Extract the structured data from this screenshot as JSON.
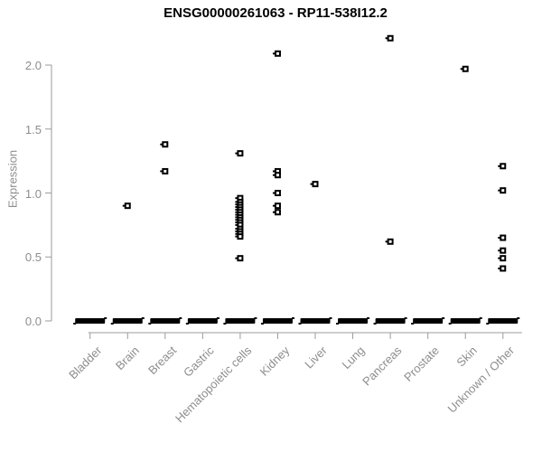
{
  "chart_data": {
    "type": "scatter",
    "subtype": "strip-plot",
    "title": "ENSG00000261063 - RP11-538I12.2",
    "xlabel": "",
    "ylabel": "Expression",
    "ylim": [
      0,
      2.3
    ],
    "yticks": [
      0,
      0.5,
      1,
      1.5,
      2
    ],
    "grid": false,
    "legend": false,
    "marker": "open-square",
    "zero_cluster_note": "every category shows a thick black horizontal bar at y=0 formed by many overlapping zero-expression points",
    "series": [
      {
        "category": "Bladder",
        "zero_stack": true,
        "values": []
      },
      {
        "category": "Brain",
        "zero_stack": true,
        "values": [
          0.9
        ]
      },
      {
        "category": "Breast",
        "zero_stack": true,
        "values": [
          1.38,
          1.17
        ]
      },
      {
        "category": "Gastric",
        "zero_stack": true,
        "values": []
      },
      {
        "category": "Hematopoietic cells",
        "zero_stack": true,
        "values": [
          1.31,
          0.96,
          0.93,
          0.91,
          0.89,
          0.87,
          0.85,
          0.83,
          0.81,
          0.79,
          0.77,
          0.75,
          0.72,
          0.7,
          0.68,
          0.66,
          0.49
        ]
      },
      {
        "category": "Kidney",
        "zero_stack": true,
        "values": [
          2.09,
          1.17,
          1.14,
          1.0,
          0.9,
          0.85
        ]
      },
      {
        "category": "Liver",
        "zero_stack": true,
        "values": [
          1.07
        ]
      },
      {
        "category": "Lung",
        "zero_stack": true,
        "values": []
      },
      {
        "category": "Pancreas",
        "zero_stack": true,
        "values": [
          2.21,
          0.62
        ]
      },
      {
        "category": "Prostate",
        "zero_stack": true,
        "values": []
      },
      {
        "category": "Skin",
        "zero_stack": true,
        "values": [
          1.97
        ]
      },
      {
        "category": "Unknown / Other",
        "zero_stack": true,
        "values": [
          1.21,
          1.02,
          0.65,
          0.55,
          0.49,
          0.41
        ]
      }
    ]
  },
  "colors": {
    "marker": "#000000",
    "title_text": "#000000",
    "axis_text": "#8d8d8d",
    "axis_line": "#9b9b9b",
    "background": "#ffffff"
  }
}
